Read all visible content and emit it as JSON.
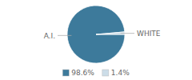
{
  "chart_data": {
    "type": "pie",
    "categories": [
      "A.I.",
      "WHITE"
    ],
    "values": [
      98.6,
      1.4
    ],
    "value_labels": [
      "98.6%",
      "1.4%"
    ],
    "colors": [
      "#3d7a9b",
      "#ccdde8"
    ],
    "legend": "bottom"
  }
}
